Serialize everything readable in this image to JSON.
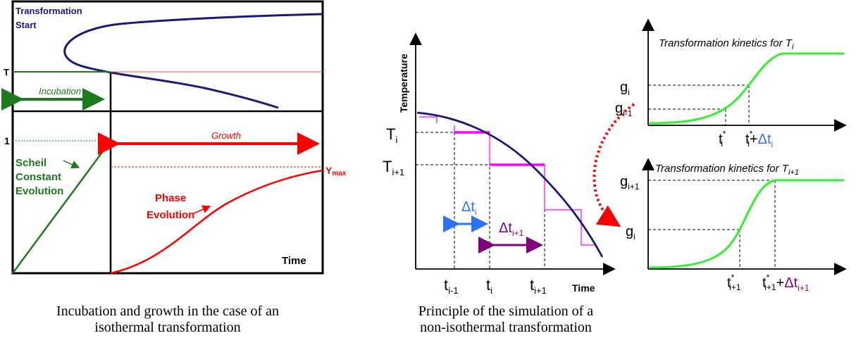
{
  "colors": {
    "navy": "#1a1a7a",
    "green": "#1e7a1e",
    "red": "#ff0000",
    "light_green": "#33ee33",
    "magenta": "#ff00ff",
    "purple": "#800080",
    "blue": "#3070ff"
  },
  "left_figure": {
    "transformation_start": [
      "Transformation",
      "Start"
    ],
    "t_label": "T",
    "incubation": "Incubation",
    "one_label": "1",
    "growth": "Growth",
    "scheil": [
      "Scheil",
      "Constant",
      "Evolution"
    ],
    "phase": [
      "Phase",
      "Evolution"
    ],
    "ymax": "Y",
    "ymax_sub": "max",
    "time": "Time",
    "caption": [
      "Incubation and growth in the case of an",
      "isothermal transformation"
    ]
  },
  "right_figure": {
    "temperature": "Temperature",
    "time": "Time",
    "T_i": {
      "main": "T",
      "sub": "i"
    },
    "T_i1": {
      "main": "T",
      "sub": "i+1"
    },
    "dt_i": {
      "main": "Δt",
      "sub": "i"
    },
    "dt_i1": {
      "main": "Δt",
      "sub": "i+1"
    },
    "t_im1": {
      "main": "t",
      "sub": "i-1"
    },
    "t_i": {
      "main": "t",
      "sub": "i"
    },
    "t_ip1": {
      "main": "t",
      "sub": "i+1"
    },
    "caption": [
      "Principle of the simulation of a",
      "non-isothermal transformation"
    ]
  },
  "kinetics_top": {
    "title": "Transformation kinetics for T",
    "title_sub": "i",
    "g_i": {
      "main": "g",
      "sub": "i"
    },
    "g_im1": {
      "main": "g",
      "sub": "i-1"
    },
    "t_star": {
      "main": "t",
      "sub": "i",
      "sup": "*"
    },
    "t_star_plus": {
      "main": "t",
      "sub": "i",
      "sup": "*",
      "plus": "+",
      "dt": "Δt",
      "dt_sub": "i"
    }
  },
  "kinetics_bottom": {
    "title": "Transformation kinetics for T",
    "title_sub": "i+1",
    "g_i1": {
      "main": "g",
      "sub": "i+1"
    },
    "g_i": {
      "main": "g",
      "sub": "i"
    },
    "t_star": {
      "main": "t",
      "sub": "i+1",
      "sup": "*"
    },
    "t_star_plus": {
      "main": "t",
      "sub": "i+1",
      "sup": "*",
      "plus": "+",
      "dt": "Δt",
      "dt_sub": "i+1"
    }
  }
}
